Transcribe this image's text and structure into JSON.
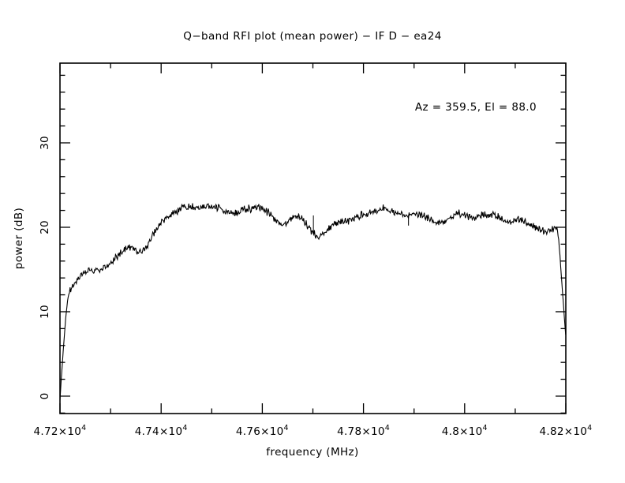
{
  "window": {
    "background": "#ffffff"
  },
  "chart_data": {
    "type": "line",
    "title": "Q−band RFI plot (mean power) − IF D − ea24",
    "xlabel": "frequency (MHz)",
    "ylabel": "power (dB)",
    "annotation": "Az = 359.5, El = 88.0",
    "line_color": "#000000",
    "axis_color": "#000000",
    "grid": false,
    "xlim": [
      47200,
      48200
    ],
    "ylim": [
      -2.06,
      39.44
    ],
    "x_major_ticks": [
      {
        "value": 47200,
        "base": "4.72×10",
        "exp": "4"
      },
      {
        "value": 47400,
        "base": "4.74×10",
        "exp": "4"
      },
      {
        "value": 47600,
        "base": "4.76×10",
        "exp": "4"
      },
      {
        "value": 47800,
        "base": "4.78×10",
        "exp": "4"
      },
      {
        "value": 48000,
        "base": "4.8×10",
        "exp": "4"
      },
      {
        "value": 48200,
        "base": "4.82×10",
        "exp": "4"
      }
    ],
    "x_minor_ticks": [
      47300,
      47500,
      47700,
      47900,
      48100
    ],
    "y_major_ticks": [
      {
        "value": 0,
        "label": "0"
      },
      {
        "value": 10,
        "label": "10"
      },
      {
        "value": 20,
        "label": "20"
      },
      {
        "value": 30,
        "label": "30"
      }
    ],
    "y_minor_step": 2,
    "series": [
      {
        "name": "mean power",
        "points": [
          [
            47200,
            -0.5
          ],
          [
            47202,
            1.5
          ],
          [
            47206,
            5.0
          ],
          [
            47211,
            9.0
          ],
          [
            47215,
            11.3
          ],
          [
            47218,
            12.4
          ],
          [
            47222,
            12.8
          ],
          [
            47228,
            13.2
          ],
          [
            47235,
            13.7
          ],
          [
            47242,
            14.2
          ],
          [
            47250,
            14.6
          ],
          [
            47256,
            14.9
          ],
          [
            47262,
            15.0
          ],
          [
            47270,
            14.9
          ],
          [
            47278,
            14.8
          ],
          [
            47285,
            15.0
          ],
          [
            47292,
            15.3
          ],
          [
            47300,
            15.8
          ],
          [
            47310,
            16.4
          ],
          [
            47320,
            16.9
          ],
          [
            47330,
            17.4
          ],
          [
            47340,
            17.7
          ],
          [
            47350,
            17.2
          ],
          [
            47358,
            16.9
          ],
          [
            47368,
            17.5
          ],
          [
            47378,
            18.4
          ],
          [
            47388,
            19.5
          ],
          [
            47398,
            20.5
          ],
          [
            47408,
            21.0
          ],
          [
            47420,
            21.5
          ],
          [
            47432,
            21.9
          ],
          [
            47445,
            22.3
          ],
          [
            47455,
            22.4
          ],
          [
            47470,
            22.4
          ],
          [
            47480,
            22.3
          ],
          [
            47490,
            22.4
          ],
          [
            47500,
            22.5
          ],
          [
            47510,
            22.4
          ],
          [
            47520,
            22.1
          ],
          [
            47532,
            21.8
          ],
          [
            47542,
            21.6
          ],
          [
            47552,
            21.8
          ],
          [
            47562,
            22.0
          ],
          [
            47575,
            22.2
          ],
          [
            47588,
            22.4
          ],
          [
            47599,
            22.4
          ],
          [
            47608,
            21.9
          ],
          [
            47618,
            21.4
          ],
          [
            47628,
            20.8
          ],
          [
            47638,
            20.5
          ],
          [
            47648,
            20.5
          ],
          [
            47658,
            21.1
          ],
          [
            47668,
            21.4
          ],
          [
            47676,
            21.2
          ],
          [
            47685,
            20.6
          ],
          [
            47694,
            19.8
          ],
          [
            47702,
            19.2
          ],
          [
            47710,
            18.8
          ],
          [
            47718,
            19.1
          ],
          [
            47726,
            19.6
          ],
          [
            47734,
            20.0
          ],
          [
            47742,
            20.4
          ],
          [
            47752,
            20.5
          ],
          [
            47762,
            20.7
          ],
          [
            47772,
            20.8
          ],
          [
            47784,
            21.1
          ],
          [
            47796,
            21.4
          ],
          [
            47808,
            21.6
          ],
          [
            47820,
            21.9
          ],
          [
            47832,
            22.1
          ],
          [
            47842,
            22.3
          ],
          [
            47852,
            22.0
          ],
          [
            47862,
            21.7
          ],
          [
            47872,
            21.5
          ],
          [
            47882,
            21.4
          ],
          [
            47892,
            21.5
          ],
          [
            47902,
            21.7
          ],
          [
            47912,
            21.5
          ],
          [
            47922,
            21.2
          ],
          [
            47932,
            20.9
          ],
          [
            47942,
            20.6
          ],
          [
            47952,
            20.4
          ],
          [
            47962,
            20.8
          ],
          [
            47974,
            21.3
          ],
          [
            47986,
            21.6
          ],
          [
            47996,
            21.6
          ],
          [
            48006,
            21.3
          ],
          [
            48016,
            21.1
          ],
          [
            48026,
            21.2
          ],
          [
            48036,
            21.4
          ],
          [
            48046,
            21.5
          ],
          [
            48056,
            21.6
          ],
          [
            48066,
            21.2
          ],
          [
            48076,
            20.9
          ],
          [
            48086,
            20.6
          ],
          [
            48096,
            20.8
          ],
          [
            48106,
            21.0
          ],
          [
            48116,
            20.8
          ],
          [
            48126,
            20.4
          ],
          [
            48136,
            20.1
          ],
          [
            48146,
            19.9
          ],
          [
            48154,
            19.6
          ],
          [
            48162,
            19.5
          ],
          [
            48170,
            19.8
          ],
          [
            48178,
            19.9
          ],
          [
            48184,
            19.7
          ],
          [
            48188,
            17.0
          ],
          [
            48192,
            13.5
          ],
          [
            48196,
            10.2
          ],
          [
            48200,
            7.0
          ]
        ]
      }
    ],
    "spikes": [
      {
        "freq": 47701,
        "to": 21.4
      },
      {
        "freq": 47889,
        "to": 20.2
      }
    ],
    "noise": {
      "seed": 9,
      "amp": 0.27,
      "rise_end": 47217,
      "rise_amp": 0.07,
      "drop_start": 48185,
      "drop_amp": 0.12
    }
  }
}
